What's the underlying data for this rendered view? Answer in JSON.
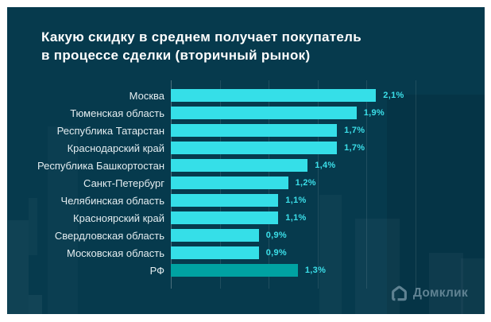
{
  "title": {
    "lines": [
      "Какую скидку в среднем получает покупатель",
      "в процессе сделки (вторичный рынок)"
    ]
  },
  "chart_data": {
    "type": "bar",
    "orientation": "horizontal",
    "title": "Какую скидку в среднем получает покупатель в процессе сделки (вторичный рынок)",
    "unit": "percent",
    "categories": [
      "Москва",
      "Тюменская область",
      "Республика Татарстан",
      "Краснодарский край",
      "Республика Башкортостан",
      "Санкт-Петербург",
      "Челябинская область",
      "Красноярский край",
      "Свердловская область",
      "Московская область",
      "РФ"
    ],
    "values": [
      2.1,
      1.9,
      1.7,
      1.7,
      1.4,
      1.2,
      1.1,
      1.1,
      0.9,
      0.9,
      1.3
    ],
    "value_labels": [
      "2,1%",
      "1,9%",
      "1,7%",
      "1,7%",
      "1,4%",
      "1,2%",
      "1,1%",
      "1,1%",
      "0,9%",
      "0,9%",
      "1,3%"
    ],
    "xlim": [
      0,
      2.5
    ],
    "grid": {
      "show": true,
      "step": 0.5,
      "orientation": "vertical"
    },
    "legend": "none",
    "highlight_index": 10,
    "highlight_label": "РФ"
  },
  "colors": {
    "frame": "#ffffff",
    "background": "#063a4d",
    "bar": "#35dfe8",
    "bar_total": "#00a2a2",
    "title_text": "#ffffff",
    "label_text": "#e4edf0",
    "value_text": "#3bdfe9",
    "logo": "#5f8292"
  },
  "footer": {
    "logo_text": "Домклик"
  }
}
